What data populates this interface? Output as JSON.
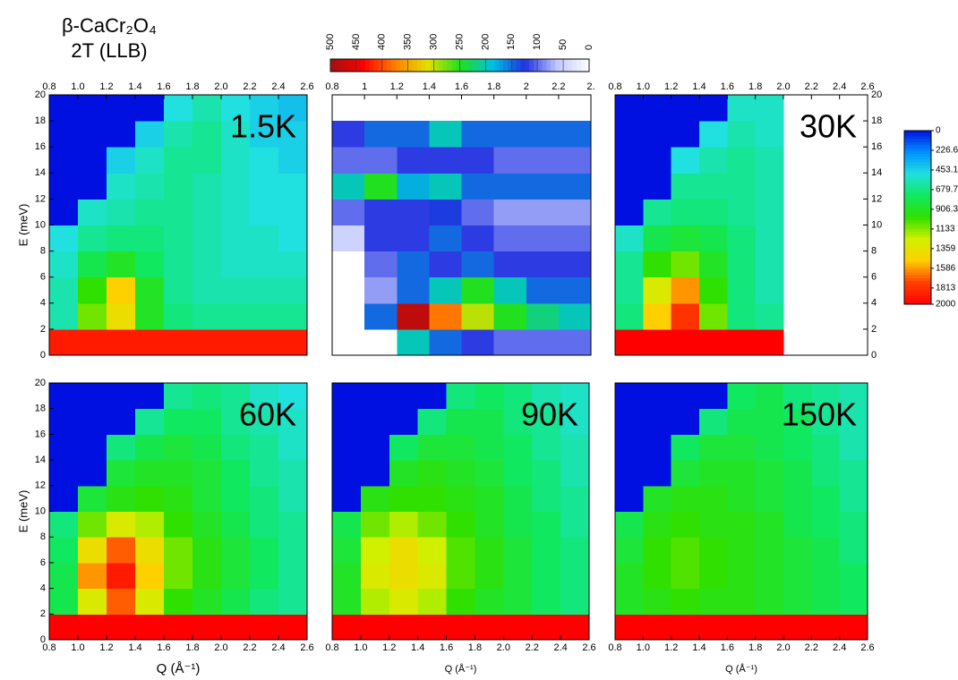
{
  "title": "β-CaCr₂O₄",
  "subtitle": "2T (LLB)",
  "chart_data": [
    {
      "type": "heatmap",
      "label": "1.5K",
      "x_side": "top",
      "y_side": "left",
      "ylabel": "E (meV)",
      "colormap": [
        "#0010e0",
        "#0090ff",
        "#20e0e0",
        "#10e860",
        "#30e000",
        "#d0f000",
        "#ffd000",
        "#ff4000",
        "#ff0000"
      ],
      "zlim": [
        0,
        2000
      ],
      "xlim": [
        0.8,
        2.6
      ],
      "ylim": [
        0,
        20
      ],
      "x_bins": [
        0.8,
        1.0,
        1.2,
        1.4,
        1.6,
        1.8,
        2.0,
        2.2,
        2.4,
        2.6
      ],
      "y_bins": [
        0,
        2,
        4,
        6,
        8,
        10,
        12,
        14,
        16,
        18,
        20
      ],
      "xticks": [
        0.8,
        {
          "value": 1,
          "label": "1.0"
        },
        1.2,
        1.4,
        1.6,
        1.8,
        {
          "value": 2,
          "label": "2.0"
        },
        2.2,
        2.4,
        2.6
      ],
      "yticks": [
        0,
        2,
        4,
        6,
        8,
        10,
        12,
        14,
        16,
        18,
        20
      ],
      "z": [
        [
          1900,
          1900,
          1900,
          1900,
          1900,
          1900,
          1900,
          1900,
          1900
        ],
        [
          600,
          1100,
          1400,
          900,
          700,
          650,
          650,
          650,
          650
        ],
        [
          600,
          1000,
          1500,
          900,
          650,
          600,
          600,
          600,
          600
        ],
        [
          550,
          800,
          900,
          750,
          650,
          600,
          550,
          550,
          550
        ],
        [
          500,
          650,
          700,
          700,
          650,
          600,
          550,
          550,
          500
        ],
        [
          0,
          550,
          600,
          650,
          650,
          600,
          550,
          500,
          500
        ],
        [
          0,
          0,
          550,
          600,
          650,
          600,
          550,
          500,
          500
        ],
        [
          0,
          0,
          450,
          550,
          650,
          650,
          550,
          500,
          450
        ],
        [
          0,
          0,
          0,
          450,
          600,
          650,
          550,
          450,
          450
        ],
        [
          0,
          0,
          0,
          0,
          500,
          600,
          500,
          450,
          400
        ]
      ]
    },
    {
      "type": "heatmap",
      "x_side": "top",
      "colormap": [
        "#ffffff",
        "#c0c8ff",
        "#2030e0",
        "#00c0e0",
        "#20e020",
        "#e0e000",
        "#ff8000",
        "#ff0000",
        "#a01010"
      ],
      "zlim": [
        0,
        500
      ],
      "xlim": [
        0.8,
        2.4
      ],
      "ylim": [
        0,
        20
      ],
      "x_bins": [
        0.8,
        1.0,
        1.2,
        1.4,
        1.6,
        1.8,
        2.0,
        2.2,
        2.4
      ],
      "y_bins": [
        0,
        2,
        4,
        6,
        8,
        10,
        12,
        14,
        16,
        18,
        20
      ],
      "xticks": [
        0.8,
        1,
        1.2,
        1.4,
        1.6,
        1.8,
        2,
        2.2,
        {
          "value": 2.4,
          "label": "2."
        }
      ],
      "z": [
        [
          0,
          0,
          200,
          150,
          120,
          100,
          100,
          100
        ],
        [
          0,
          150,
          480,
          380,
          300,
          250,
          220,
          200
        ],
        [
          0,
          80,
          150,
          200,
          250,
          200,
          150,
          150
        ],
        [
          0,
          100,
          150,
          120,
          150,
          120,
          120,
          120
        ],
        [
          50,
          120,
          120,
          150,
          120,
          100,
          100,
          100
        ],
        [
          100,
          120,
          120,
          130,
          100,
          80,
          80,
          80
        ],
        [
          200,
          250,
          180,
          200,
          150,
          150,
          150,
          150
        ],
        [
          100,
          100,
          120,
          120,
          120,
          100,
          100,
          100
        ],
        [
          120,
          150,
          150,
          200,
          150,
          150,
          150,
          150
        ],
        [
          null,
          null,
          null,
          null,
          null,
          null,
          null,
          null
        ]
      ]
    },
    {
      "type": "heatmap",
      "label": "30K",
      "x_side": "top",
      "y_side": "right",
      "colormap": [
        "#0010e0",
        "#0090ff",
        "#20e0e0",
        "#10e860",
        "#30e000",
        "#d0f000",
        "#ffd000",
        "#ff4000",
        "#ff0000"
      ],
      "zlim": [
        0,
        2000
      ],
      "xlim": [
        0.8,
        2.6
      ],
      "ylim": [
        0,
        20
      ],
      "x_bins": [
        0.8,
        1.0,
        1.2,
        1.4,
        1.6,
        1.8,
        2.0,
        2.2,
        2.4,
        2.6
      ],
      "y_bins": [
        0,
        2,
        4,
        6,
        8,
        10,
        12,
        14,
        16,
        18,
        20
      ],
      "xticks": [
        0.8,
        {
          "value": 1,
          "label": "1.0"
        },
        1.2,
        1.4,
        1.6,
        1.8,
        {
          "value": 2,
          "label": "2.0"
        },
        2.2,
        2.4,
        2.6
      ],
      "yticks": [
        0,
        2,
        4,
        6,
        8,
        10,
        12,
        14,
        16,
        18,
        20
      ],
      "z": [
        [
          2000,
          2000,
          2000,
          2000,
          2000,
          2000,
          null,
          null,
          null
        ],
        [
          700,
          1500,
          1800,
          1100,
          700,
          650,
          null,
          null,
          null
        ],
        [
          650,
          1300,
          1600,
          1000,
          700,
          600,
          null,
          null,
          null
        ],
        [
          650,
          1000,
          1100,
          900,
          700,
          600,
          null,
          null,
          null
        ],
        [
          550,
          800,
          850,
          800,
          700,
          600,
          null,
          null,
          null
        ],
        [
          0,
          650,
          700,
          700,
          650,
          600,
          null,
          null,
          null
        ],
        [
          0,
          0,
          650,
          650,
          650,
          600,
          null,
          null,
          null
        ],
        [
          0,
          0,
          500,
          600,
          650,
          600,
          null,
          null,
          null
        ],
        [
          0,
          0,
          0,
          500,
          600,
          550,
          null,
          null,
          null
        ],
        [
          0,
          0,
          0,
          0,
          550,
          550,
          null,
          null,
          null
        ]
      ]
    },
    {
      "type": "heatmap",
      "label": "60K",
      "x_side": "bottom",
      "y_side": "left",
      "xlabel": "Q (Å⁻¹)",
      "ylabel": "E (meV)",
      "colormap": [
        "#0010e0",
        "#0090ff",
        "#20e0e0",
        "#10e860",
        "#30e000",
        "#d0f000",
        "#ffd000",
        "#ff4000",
        "#ff0000"
      ],
      "zlim": [
        0,
        2000
      ],
      "xlim": [
        0.8,
        2.6
      ],
      "ylim": [
        0,
        20
      ],
      "x_bins": [
        0.8,
        1.0,
        1.2,
        1.4,
        1.6,
        1.8,
        2.0,
        2.2,
        2.4,
        2.6
      ],
      "y_bins": [
        0,
        2,
        4,
        6,
        8,
        10,
        12,
        14,
        16,
        18,
        20
      ],
      "xticks": [
        0.8,
        {
          "value": 1,
          "label": "1.0"
        },
        1.2,
        1.4,
        1.6,
        1.8,
        {
          "value": 2,
          "label": "2.0"
        },
        2.2,
        2.4,
        2.6
      ],
      "yticks": [
        0,
        2,
        4,
        6,
        8,
        10,
        12,
        14,
        16,
        18,
        20
      ],
      "z": [
        [
          2000,
          2000,
          2000,
          2000,
          2000,
          2000,
          2000,
          2000,
          2000
        ],
        [
          800,
          1300,
          1700,
          1300,
          1000,
          900,
          800,
          700,
          650
        ],
        [
          800,
          1600,
          1900,
          1500,
          1100,
          950,
          850,
          750,
          650
        ],
        [
          750,
          1400,
          1700,
          1400,
          1100,
          950,
          850,
          750,
          650
        ],
        [
          700,
          1100,
          1300,
          1200,
          1000,
          900,
          800,
          700,
          650
        ],
        [
          0,
          850,
          950,
          1000,
          950,
          850,
          750,
          700,
          600
        ],
        [
          0,
          0,
          850,
          900,
          900,
          850,
          750,
          650,
          600
        ],
        [
          0,
          0,
          700,
          800,
          850,
          800,
          700,
          650,
          550
        ],
        [
          0,
          0,
          0,
          650,
          750,
          750,
          650,
          600,
          550
        ],
        [
          0,
          0,
          0,
          0,
          650,
          700,
          650,
          550,
          500
        ]
      ]
    },
    {
      "type": "heatmap",
      "label": "90K",
      "x_side": "bottom",
      "xlabel": "Q (Å⁻¹)",
      "colormap": [
        "#0010e0",
        "#0090ff",
        "#20e0e0",
        "#10e860",
        "#30e000",
        "#d0f000",
        "#ffd000",
        "#ff4000",
        "#ff0000"
      ],
      "zlim": [
        0,
        2000
      ],
      "xlim": [
        0.8,
        2.6
      ],
      "ylim": [
        0,
        20
      ],
      "x_bins": [
        0.8,
        1.0,
        1.2,
        1.4,
        1.6,
        1.8,
        2.0,
        2.2,
        2.4,
        2.6
      ],
      "y_bins": [
        0,
        2,
        4,
        6,
        8,
        10,
        12,
        14,
        16,
        18,
        20
      ],
      "xticks": [
        0.8,
        {
          "value": 1,
          "label": "1.0"
        },
        1.2,
        1.4,
        1.6,
        1.8,
        {
          "value": 2,
          "label": "2.0"
        },
        2.2,
        2.4,
        2.6
      ],
      "z": [
        [
          2000,
          2000,
          2000,
          2000,
          2000,
          2000,
          2000,
          2000,
          2000
        ],
        [
          900,
          1200,
          1300,
          1200,
          1000,
          900,
          850,
          750,
          700
        ],
        [
          900,
          1300,
          1400,
          1300,
          1050,
          950,
          850,
          750,
          700
        ],
        [
          850,
          1250,
          1400,
          1250,
          1050,
          950,
          850,
          750,
          700
        ],
        [
          800,
          1100,
          1200,
          1100,
          1000,
          900,
          800,
          750,
          650
        ],
        [
          0,
          950,
          1000,
          1000,
          950,
          900,
          800,
          700,
          650
        ],
        [
          0,
          0,
          900,
          950,
          900,
          850,
          750,
          700,
          600
        ],
        [
          0,
          0,
          750,
          850,
          850,
          800,
          750,
          650,
          600
        ],
        [
          0,
          0,
          0,
          700,
          800,
          800,
          700,
          650,
          550
        ],
        [
          0,
          0,
          0,
          0,
          700,
          750,
          700,
          600,
          550
        ]
      ]
    },
    {
      "type": "heatmap",
      "label": "150K",
      "x_side": "bottom",
      "xlabel": "Q (Å⁻¹)",
      "colormap": [
        "#0010e0",
        "#0090ff",
        "#20e0e0",
        "#10e860",
        "#30e000",
        "#d0f000",
        "#ffd000",
        "#ff4000",
        "#ff0000"
      ],
      "zlim": [
        0,
        2000
      ],
      "xlim": [
        0.8,
        2.6
      ],
      "ylim": [
        0,
        20
      ],
      "x_bins": [
        0.8,
        1.0,
        1.2,
        1.4,
        1.6,
        1.8,
        2.0,
        2.2,
        2.4,
        2.6
      ],
      "y_bins": [
        0,
        2,
        4,
        6,
        8,
        10,
        12,
        14,
        16,
        18,
        20
      ],
      "xticks": [
        0.8,
        {
          "value": 1,
          "label": "1.0"
        },
        1.2,
        1.4,
        1.6,
        1.8,
        {
          "value": 2,
          "label": "2.0"
        },
        2.2,
        2.4,
        2.6
      ],
      "z": [
        [
          2000,
          2000,
          2000,
          2000,
          2000,
          2000,
          2000,
          2000,
          2000
        ],
        [
          900,
          950,
          1000,
          950,
          950,
          900,
          850,
          800,
          750
        ],
        [
          900,
          1000,
          1050,
          1000,
          950,
          900,
          850,
          800,
          750
        ],
        [
          850,
          1000,
          1050,
          1000,
          950,
          900,
          850,
          800,
          700
        ],
        [
          800,
          950,
          1000,
          950,
          950,
          900,
          800,
          750,
          700
        ],
        [
          0,
          900,
          950,
          950,
          900,
          850,
          800,
          750,
          650
        ],
        [
          0,
          0,
          850,
          900,
          900,
          850,
          800,
          700,
          650
        ],
        [
          0,
          0,
          750,
          850,
          850,
          800,
          750,
          700,
          600
        ],
        [
          0,
          0,
          0,
          700,
          800,
          800,
          750,
          650,
          600
        ],
        [
          0,
          0,
          0,
          0,
          750,
          800,
          700,
          650,
          600
        ]
      ]
    },
    {
      "type": "colorbar",
      "orientation": "horizontal",
      "colormap": [
        "#ffffff",
        "#c0c8ff",
        "#2030e0",
        "#00c0e0",
        "#20e020",
        "#e0e000",
        "#ff8000",
        "#ff0000",
        "#a01010"
      ],
      "lim": [
        500,
        0
      ],
      "ticks": [
        500,
        450,
        400,
        350,
        300,
        250,
        200,
        150,
        100,
        50,
        0
      ]
    },
    {
      "type": "colorbar",
      "orientation": "vertical",
      "colormap": [
        "#0010e0",
        "#0090ff",
        "#20e0e0",
        "#10e860",
        "#30e000",
        "#d0f000",
        "#ffd000",
        "#ff4000",
        "#ff0000"
      ],
      "lim": [
        0,
        2000
      ],
      "ticks": [
        0,
        226.6,
        453.1,
        679.7,
        906.3,
        1133,
        1359,
        1586,
        1813,
        2000
      ]
    }
  ]
}
